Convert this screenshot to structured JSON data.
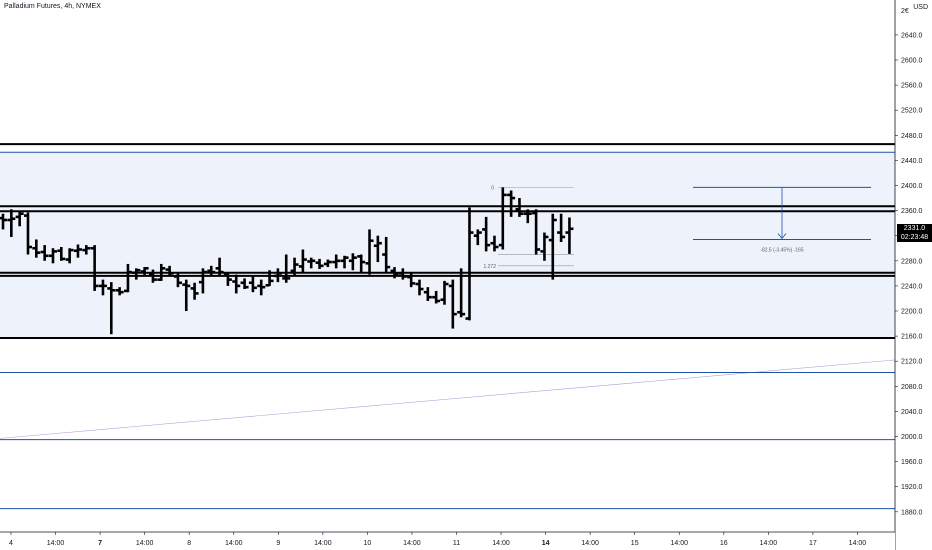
{
  "symbol": {
    "name": "Palladium Futures",
    "interval": "4h",
    "exchange": "NYMEX"
  },
  "currency": "USD",
  "price_axis": {
    "top_clipped": "2€",
    "ticks": [
      "2640.0",
      "2600.0",
      "2560.0",
      "2520.0",
      "2480.0",
      "2440.0",
      "2400.0",
      "2360.0",
      "2320.0",
      "2280.0",
      "2240.0",
      "2200.0",
      "2160.0",
      "2120.0",
      "2080.0",
      "2040.0",
      "2000.0",
      "1960.0",
      "1920.0",
      "1880.0"
    ],
    "last_price": "2331.0",
    "countdown": "02:23:48"
  },
  "time_axis": [
    {
      "label": "4",
      "bold": false
    },
    {
      "label": "14:00",
      "bold": false
    },
    {
      "label": "7",
      "bold": true
    },
    {
      "label": "14:00",
      "bold": false
    },
    {
      "label": "8",
      "bold": false
    },
    {
      "label": "14:00",
      "bold": false
    },
    {
      "label": "9",
      "bold": false
    },
    {
      "label": "14:00",
      "bold": false
    },
    {
      "label": "10",
      "bold": false
    },
    {
      "label": "14:00",
      "bold": false
    },
    {
      "label": "11",
      "bold": false
    },
    {
      "label": "14:00",
      "bold": false
    },
    {
      "label": "14",
      "bold": true
    },
    {
      "label": "14:00",
      "bold": false
    },
    {
      "label": "15",
      "bold": false
    },
    {
      "label": "14:00",
      "bold": false
    },
    {
      "label": "16",
      "bold": false
    },
    {
      "label": "14:00",
      "bold": false
    },
    {
      "label": "17",
      "bold": false
    },
    {
      "label": "14:00",
      "bold": false
    }
  ],
  "annotations": {
    "fib_zero": "0",
    "fib_level": "1.272",
    "measure": "-82.5 (-3.45%) -165"
  },
  "colors": {
    "bars": "#000000",
    "level_lines": "#000000",
    "blue_lines": "#1e53a8",
    "zone_fill": "#eef2fb",
    "trendline": "#b39ddb",
    "price_tag": "#000000"
  },
  "chart_data": {
    "type": "ohlc",
    "title": "Palladium Futures, 4h, NYMEX",
    "ylabel": "USD",
    "ylim": [
      1860,
      2690
    ],
    "levels": {
      "black_lines": [
        2466,
        2367,
        2359,
        2261,
        2256,
        2157
      ],
      "blue_lines": [
        2453,
        2102,
        1995,
        1885
      ],
      "zone": [
        2157,
        2453
      ],
      "measure_box": [
        2397,
        2314
      ]
    },
    "bars": [
      {
        "o": 2348,
        "h": 2355,
        "l": 2330,
        "c": 2345
      },
      {
        "o": 2345,
        "h": 2362,
        "l": 2318,
        "c": 2347
      },
      {
        "o": 2350,
        "h": 2360,
        "l": 2335,
        "c": 2355
      },
      {
        "o": 2352,
        "h": 2357,
        "l": 2290,
        "c": 2302
      },
      {
        "o": 2300,
        "h": 2314,
        "l": 2285,
        "c": 2293
      },
      {
        "o": 2294,
        "h": 2305,
        "l": 2280,
        "c": 2288
      },
      {
        "o": 2288,
        "h": 2300,
        "l": 2276,
        "c": 2295
      },
      {
        "o": 2296,
        "h": 2302,
        "l": 2280,
        "c": 2283
      },
      {
        "o": 2282,
        "h": 2300,
        "l": 2276,
        "c": 2297
      },
      {
        "o": 2296,
        "h": 2306,
        "l": 2285,
        "c": 2298
      },
      {
        "o": 2297,
        "h": 2305,
        "l": 2290,
        "c": 2300
      },
      {
        "o": 2300,
        "h": 2305,
        "l": 2232,
        "c": 2240
      },
      {
        "o": 2240,
        "h": 2250,
        "l": 2225,
        "c": 2240
      },
      {
        "o": 2236,
        "h": 2246,
        "l": 2163,
        "c": 2233
      },
      {
        "o": 2233,
        "h": 2238,
        "l": 2225,
        "c": 2230
      },
      {
        "o": 2232,
        "h": 2275,
        "l": 2230,
        "c": 2262
      },
      {
        "o": 2261,
        "h": 2268,
        "l": 2250,
        "c": 2265
      },
      {
        "o": 2263,
        "h": 2270,
        "l": 2257,
        "c": 2268
      },
      {
        "o": 2258,
        "h": 2266,
        "l": 2245,
        "c": 2250
      },
      {
        "o": 2250,
        "h": 2275,
        "l": 2248,
        "c": 2268
      },
      {
        "o": 2266,
        "h": 2272,
        "l": 2255,
        "c": 2260
      },
      {
        "o": 2255,
        "h": 2262,
        "l": 2238,
        "c": 2245
      },
      {
        "o": 2242,
        "h": 2250,
        "l": 2200,
        "c": 2240
      },
      {
        "o": 2236,
        "h": 2245,
        "l": 2218,
        "c": 2228
      },
      {
        "o": 2246,
        "h": 2268,
        "l": 2228,
        "c": 2262
      },
      {
        "o": 2264,
        "h": 2272,
        "l": 2255,
        "c": 2262
      },
      {
        "o": 2268,
        "h": 2285,
        "l": 2255,
        "c": 2262
      },
      {
        "o": 2258,
        "h": 2262,
        "l": 2240,
        "c": 2250
      },
      {
        "o": 2247,
        "h": 2258,
        "l": 2228,
        "c": 2240
      },
      {
        "o": 2245,
        "h": 2252,
        "l": 2235,
        "c": 2238
      },
      {
        "o": 2245,
        "h": 2255,
        "l": 2230,
        "c": 2237
      },
      {
        "o": 2240,
        "h": 2250,
        "l": 2225,
        "c": 2238
      },
      {
        "o": 2241,
        "h": 2265,
        "l": 2240,
        "c": 2248
      },
      {
        "o": 2256,
        "h": 2268,
        "l": 2246,
        "c": 2260
      },
      {
        "o": 2252,
        "h": 2290,
        "l": 2245,
        "c": 2252
      },
      {
        "o": 2264,
        "h": 2285,
        "l": 2255,
        "c": 2274
      },
      {
        "o": 2271,
        "h": 2298,
        "l": 2262,
        "c": 2282
      },
      {
        "o": 2279,
        "h": 2285,
        "l": 2268,
        "c": 2280
      },
      {
        "o": 2277,
        "h": 2283,
        "l": 2267,
        "c": 2272
      },
      {
        "o": 2275,
        "h": 2282,
        "l": 2270,
        "c": 2278
      },
      {
        "o": 2278,
        "h": 2290,
        "l": 2268,
        "c": 2280
      },
      {
        "o": 2280,
        "h": 2288,
        "l": 2268,
        "c": 2285
      },
      {
        "o": 2280,
        "h": 2292,
        "l": 2265,
        "c": 2285
      },
      {
        "o": 2287,
        "h": 2290,
        "l": 2260,
        "c": 2278
      },
      {
        "o": 2276,
        "h": 2330,
        "l": 2258,
        "c": 2312
      },
      {
        "o": 2304,
        "h": 2320,
        "l": 2278,
        "c": 2308
      },
      {
        "o": 2290,
        "h": 2318,
        "l": 2260,
        "c": 2270
      },
      {
        "o": 2264,
        "h": 2270,
        "l": 2252,
        "c": 2258
      },
      {
        "o": 2260,
        "h": 2268,
        "l": 2250,
        "c": 2255
      },
      {
        "o": 2254,
        "h": 2262,
        "l": 2238,
        "c": 2244
      },
      {
        "o": 2243,
        "h": 2250,
        "l": 2225,
        "c": 2235
      },
      {
        "o": 2230,
        "h": 2238,
        "l": 2216,
        "c": 2222
      },
      {
        "o": 2222,
        "h": 2232,
        "l": 2212,
        "c": 2216
      },
      {
        "o": 2218,
        "h": 2248,
        "l": 2210,
        "c": 2243
      },
      {
        "o": 2240,
        "h": 2250,
        "l": 2172,
        "c": 2195
      },
      {
        "o": 2198,
        "h": 2268,
        "l": 2190,
        "c": 2195
      },
      {
        "o": 2188,
        "h": 2365,
        "l": 2185,
        "c": 2325
      },
      {
        "o": 2320,
        "h": 2330,
        "l": 2305,
        "c": 2325
      },
      {
        "o": 2330,
        "h": 2350,
        "l": 2295,
        "c": 2305
      },
      {
        "o": 2308,
        "h": 2320,
        "l": 2295,
        "c": 2302
      },
      {
        "o": 2305,
        "h": 2397,
        "l": 2298,
        "c": 2385
      },
      {
        "o": 2385,
        "h": 2392,
        "l": 2350,
        "c": 2380
      },
      {
        "o": 2362,
        "h": 2380,
        "l": 2350,
        "c": 2355
      },
      {
        "o": 2355,
        "h": 2362,
        "l": 2340,
        "c": 2355
      },
      {
        "o": 2356,
        "h": 2362,
        "l": 2290,
        "c": 2298
      },
      {
        "o": 2295,
        "h": 2325,
        "l": 2280,
        "c": 2318
      },
      {
        "o": 2313,
        "h": 2355,
        "l": 2250,
        "c": 2345
      },
      {
        "o": 2325,
        "h": 2355,
        "l": 2310,
        "c": 2318
      },
      {
        "o": 2325,
        "h": 2349,
        "l": 2291,
        "c": 2331
      }
    ]
  }
}
